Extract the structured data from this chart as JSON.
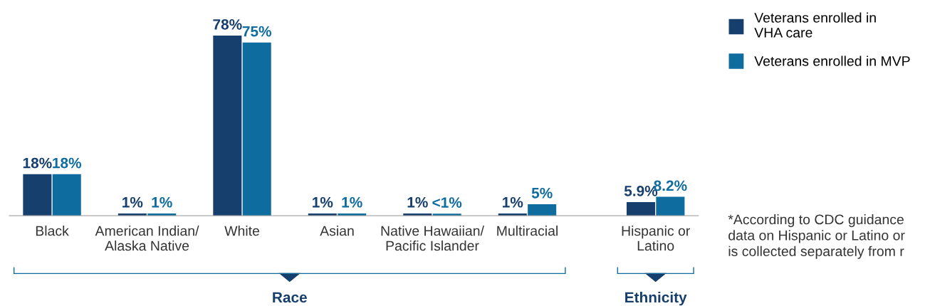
{
  "chart_data": {
    "type": "bar",
    "categories": [
      "Black",
      "American Indian/\nAlaska Native",
      "White",
      "Asian",
      "Native Hawaiian/\nPacific Islander",
      "Multiracial",
      "Hispanic or\nLatino"
    ],
    "series": [
      {
        "name": "Veterans enrolled in\nVHA care",
        "color": "#173f6e",
        "values": [
          18,
          1,
          78,
          1,
          1,
          1,
          5.9
        ],
        "value_labels": [
          "18%",
          "1%",
          "78%",
          "1%",
          "1%",
          "1%",
          "5.9%"
        ]
      },
      {
        "name": "Veterans enrolled in MVP",
        "color": "#0f6c9e",
        "values": [
          18,
          1,
          75,
          1,
          0.9,
          5,
          8.2
        ],
        "value_labels": [
          "18%",
          "1%",
          "75%",
          "1%",
          "<1%",
          "5%",
          "8.2%"
        ]
      }
    ],
    "legend": "top right",
    "grid": false,
    "annotations": [
      "Race",
      "Ethnicity",
      "*According to CDC guidance\ndata on Hispanic or Latino or\nis collected separately from r"
    ]
  }
}
